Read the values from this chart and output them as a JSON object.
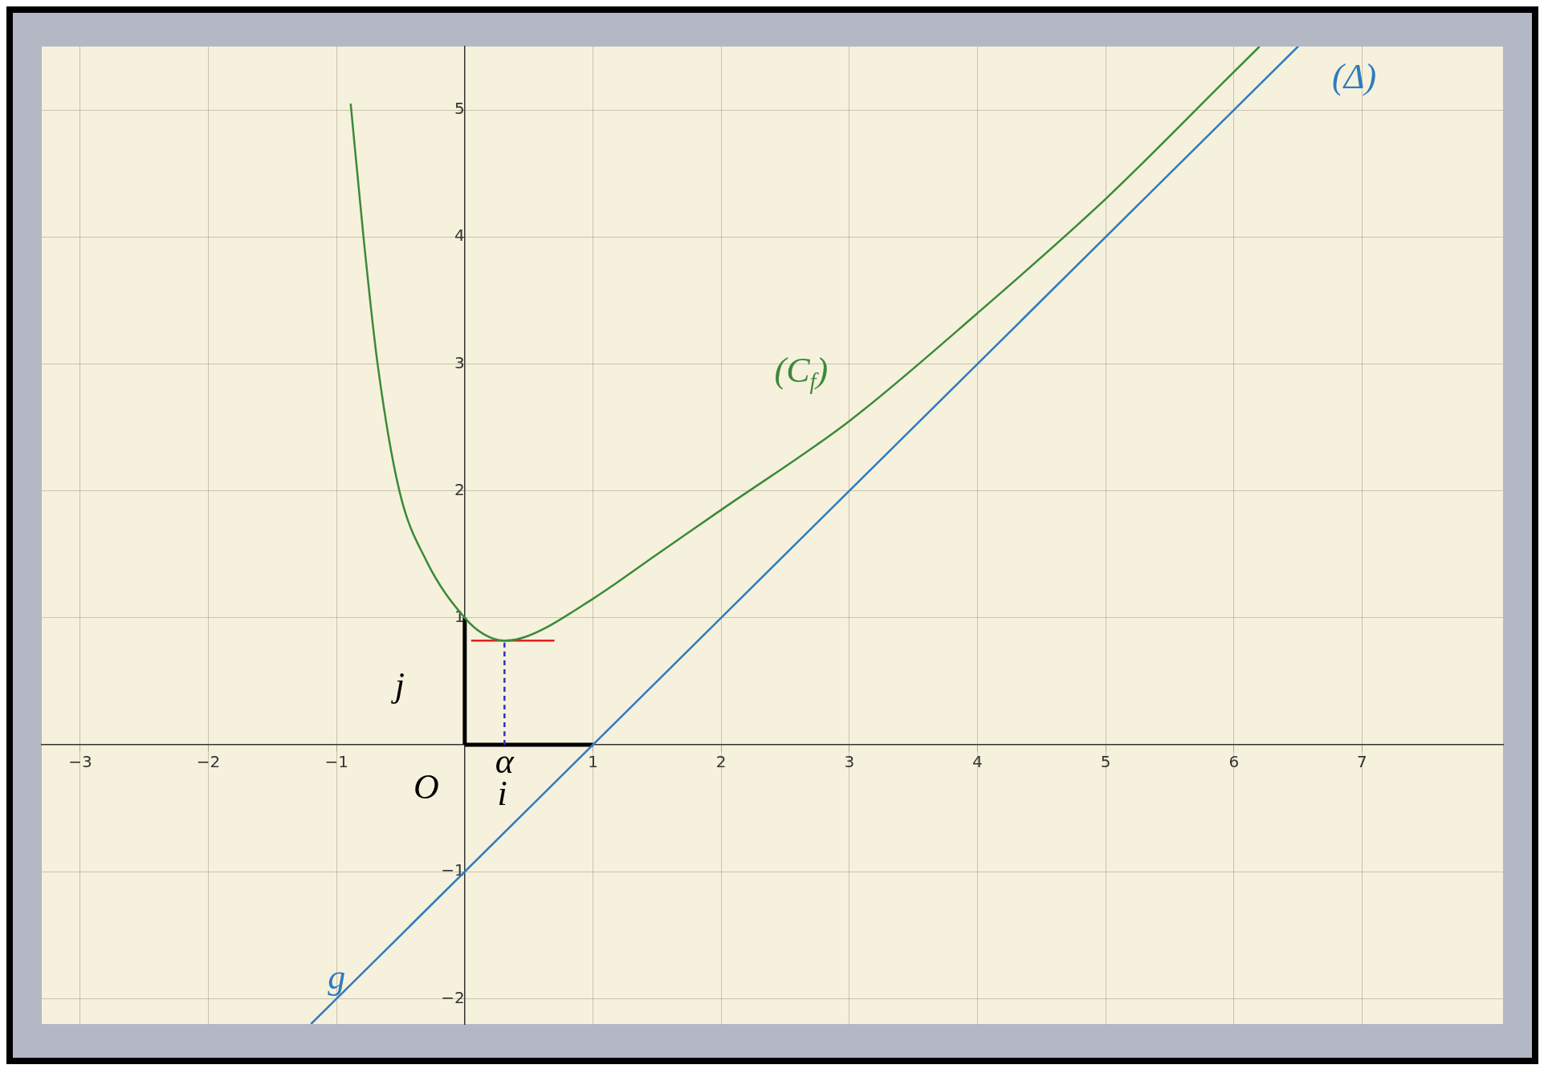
{
  "chart_data": {
    "type": "line",
    "xlim": [
      -3.3,
      8.1
    ],
    "ylim": [
      -2.2,
      5.5
    ],
    "xticks": [
      -3,
      -2,
      -1,
      {
        "value": 0,
        "label": null
      },
      1,
      2,
      3,
      4,
      5,
      6,
      7
    ],
    "yticks": [
      -2,
      -1,
      {
        "value": 0,
        "label": null
      },
      1,
      2,
      3,
      4,
      5
    ],
    "grid": true,
    "legend": false,
    "marker": "none",
    "series": [
      {
        "name": "(C$_{f}$)",
        "color": "#3a8a3a",
        "x": [
          -0.89,
          -0.79,
          -0.68,
          -0.51,
          -0.3,
          0,
          0.15,
          0.31,
          0.5,
          1,
          1.5,
          2,
          3,
          4,
          5,
          6,
          6.2
        ],
        "values": [
          5.05,
          4,
          3,
          2,
          1.45,
          1,
          0.87,
          0.82,
          0.86,
          1.15,
          1.5,
          1.85,
          2.55,
          3.4,
          4.3,
          5.3,
          5.5
        ]
      },
      {
        "name": "(Δ)",
        "color": "#2f7bbf",
        "x": [
          -1.2,
          6.5
        ],
        "values": [
          -2.2,
          5.5
        ]
      },
      {
        "color": "#3030c0",
        "line_style": "dashed",
        "x": [
          0.31,
          0.31
        ],
        "values": [
          0,
          0.82
        ]
      },
      {
        "color": "#e02020",
        "x": [
          0.05,
          0.7
        ],
        "values": [
          0.82,
          0.82
        ]
      },
      {
        "color": "#000000",
        "x": [
          0,
          1
        ],
        "values": [
          0,
          0
        ]
      },
      {
        "color": "#000000",
        "x": [
          0,
          0
        ],
        "values": [
          0,
          1
        ]
      }
    ],
    "annotations": [
      "O",
      "i⃗",
      "j⃗",
      "α",
      "g"
    ]
  }
}
